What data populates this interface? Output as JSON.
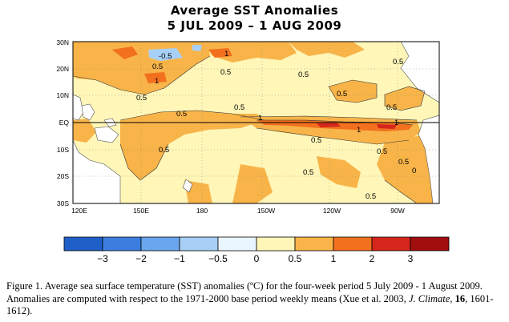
{
  "title": {
    "line1": "Average SST Anomalies",
    "line2": "5 JUL 2009 – 1 AUG 2009"
  },
  "map": {
    "lat_labels": [
      "30N",
      "20N",
      "10N",
      "EQ",
      "10S",
      "20S",
      "30S"
    ],
    "lon_labels": [
      "120E",
      "150E",
      "180",
      "150W",
      "120W",
      "90W"
    ],
    "contour_labels": [
      "-0.5",
      "1",
      "0.5",
      "0.5",
      "1",
      "0.5",
      "0.5",
      "0.5",
      "0.5",
      "0.5",
      "0.5",
      "1",
      "1",
      "1",
      "0.5",
      "0.5",
      "0.5",
      "0.5",
      "0",
      "0.5",
      "0.5",
      "0.5"
    ]
  },
  "colorbar": {
    "labels": [
      "−3",
      "−2",
      "−1",
      "−0.5",
      "0",
      "0.5",
      "1",
      "2",
      "3"
    ],
    "colors": [
      "#1f5fc8",
      "#3c7ee0",
      "#6aa6ee",
      "#a8d0f6",
      "#eaf6ff",
      "#fff6b8",
      "#f8b448",
      "#f2701e",
      "#d4261a",
      "#a00e0e"
    ]
  },
  "caption": {
    "part1": "Figure 1. Average sea surface temperature (SST) anomalies (ºC) for the four-week period 5 July 2009 - 1 August 2009.   Anomalies are computed with respect to the 1971-2000 base period weekly means (Xue et al. 2003, ",
    "journal": "J. Climate",
    "sep": ", ",
    "volume": "16",
    "part2": ", 1601-1612)."
  }
}
